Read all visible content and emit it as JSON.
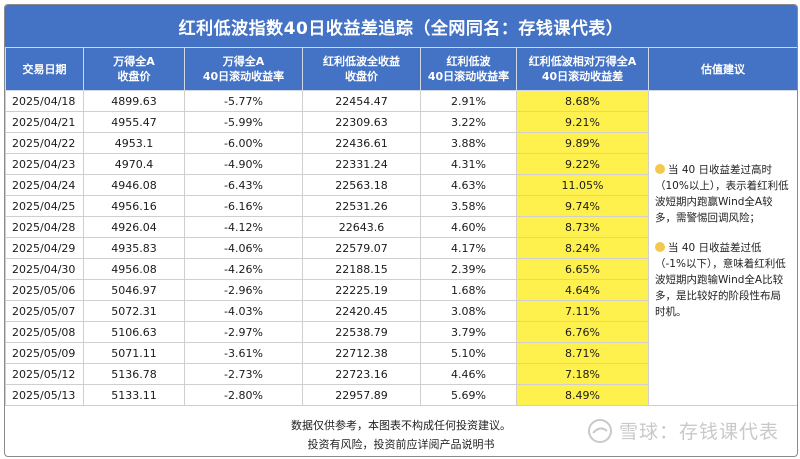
{
  "title": "红利低波指数40日收益差追踪（全网同名：存钱课代表）",
  "headers": {
    "date": "交易日期",
    "wind_close_1": "万得全A",
    "wind_close_2": "收盘价",
    "wind_ret_1": "万得全A",
    "wind_ret_2": "40日滚动收益率",
    "dlv_close_1": "红利低波全收益",
    "dlv_close_2": "收盘价",
    "dlv_ret_1": "红利低波",
    "dlv_ret_2": "40日滚动收益率",
    "spread_1": "红利低波相对万得全A",
    "spread_2": "40日滚动收益差",
    "advice": "估值建议"
  },
  "rows": [
    {
      "date": "2025/04/18",
      "wind_close": "4899.63",
      "wind_ret": "-5.77%",
      "dlv_close": "22454.47",
      "dlv_ret": "2.91%",
      "spread": "8.68%"
    },
    {
      "date": "2025/04/21",
      "wind_close": "4955.47",
      "wind_ret": "-5.99%",
      "dlv_close": "22309.63",
      "dlv_ret": "3.22%",
      "spread": "9.21%"
    },
    {
      "date": "2025/04/22",
      "wind_close": "4953.1",
      "wind_ret": "-6.00%",
      "dlv_close": "22436.61",
      "dlv_ret": "3.88%",
      "spread": "9.89%"
    },
    {
      "date": "2025/04/23",
      "wind_close": "4970.4",
      "wind_ret": "-4.90%",
      "dlv_close": "22331.24",
      "dlv_ret": "4.31%",
      "spread": "9.22%"
    },
    {
      "date": "2025/04/24",
      "wind_close": "4946.08",
      "wind_ret": "-6.43%",
      "dlv_close": "22563.18",
      "dlv_ret": "4.63%",
      "spread": "11.05%"
    },
    {
      "date": "2025/04/25",
      "wind_close": "4956.16",
      "wind_ret": "-6.16%",
      "dlv_close": "22531.26",
      "dlv_ret": "3.58%",
      "spread": "9.74%"
    },
    {
      "date": "2025/04/28",
      "wind_close": "4926.04",
      "wind_ret": "-4.12%",
      "dlv_close": "22643.6",
      "dlv_ret": "4.60%",
      "spread": "8.73%"
    },
    {
      "date": "2025/04/29",
      "wind_close": "4935.83",
      "wind_ret": "-4.06%",
      "dlv_close": "22579.07",
      "dlv_ret": "4.17%",
      "spread": "8.24%"
    },
    {
      "date": "2025/04/30",
      "wind_close": "4956.08",
      "wind_ret": "-4.26%",
      "dlv_close": "22188.15",
      "dlv_ret": "2.39%",
      "spread": "6.65%"
    },
    {
      "date": "2025/05/06",
      "wind_close": "5046.97",
      "wind_ret": "-2.96%",
      "dlv_close": "22225.19",
      "dlv_ret": "1.68%",
      "spread": "4.64%"
    },
    {
      "date": "2025/05/07",
      "wind_close": "5072.31",
      "wind_ret": "-4.03%",
      "dlv_close": "22420.45",
      "dlv_ret": "3.08%",
      "spread": "7.11%"
    },
    {
      "date": "2025/05/08",
      "wind_close": "5106.63",
      "wind_ret": "-2.97%",
      "dlv_close": "22538.79",
      "dlv_ret": "3.79%",
      "spread": "6.76%"
    },
    {
      "date": "2025/05/09",
      "wind_close": "5071.11",
      "wind_ret": "-3.61%",
      "dlv_close": "22712.38",
      "dlv_ret": "5.10%",
      "spread": "8.71%"
    },
    {
      "date": "2025/05/12",
      "wind_close": "5136.78",
      "wind_ret": "-2.73%",
      "dlv_close": "22723.16",
      "dlv_ret": "4.46%",
      "spread": "7.18%"
    },
    {
      "date": "2025/05/13",
      "wind_close": "5133.11",
      "wind_ret": "-2.80%",
      "dlv_close": "22957.89",
      "dlv_ret": "5.69%",
      "spread": "8.49%"
    }
  ],
  "advice": {
    "para1": "当 40 日收益差过高时（10%以上），表示着红利低波短期内跑赢Wind全A较多，需警惕回调风险；",
    "para2": "当 40 日收益差过低（-1%以下），意味着红利低波短期内跑输Wind全A比较多，是比较好的阶段性布局时机。",
    "icon": "lightbulb-icon"
  },
  "footer": {
    "line1": "数据仅供参考，本图表不构成任何投资建议。",
    "line2": "投资有风险，投资前应详阅产品说明书"
  },
  "watermark": "雪球：存钱课代表",
  "colors": {
    "header_bg": "#4472c4",
    "highlight": "#fff14d",
    "header_text": "#ffffff"
  }
}
